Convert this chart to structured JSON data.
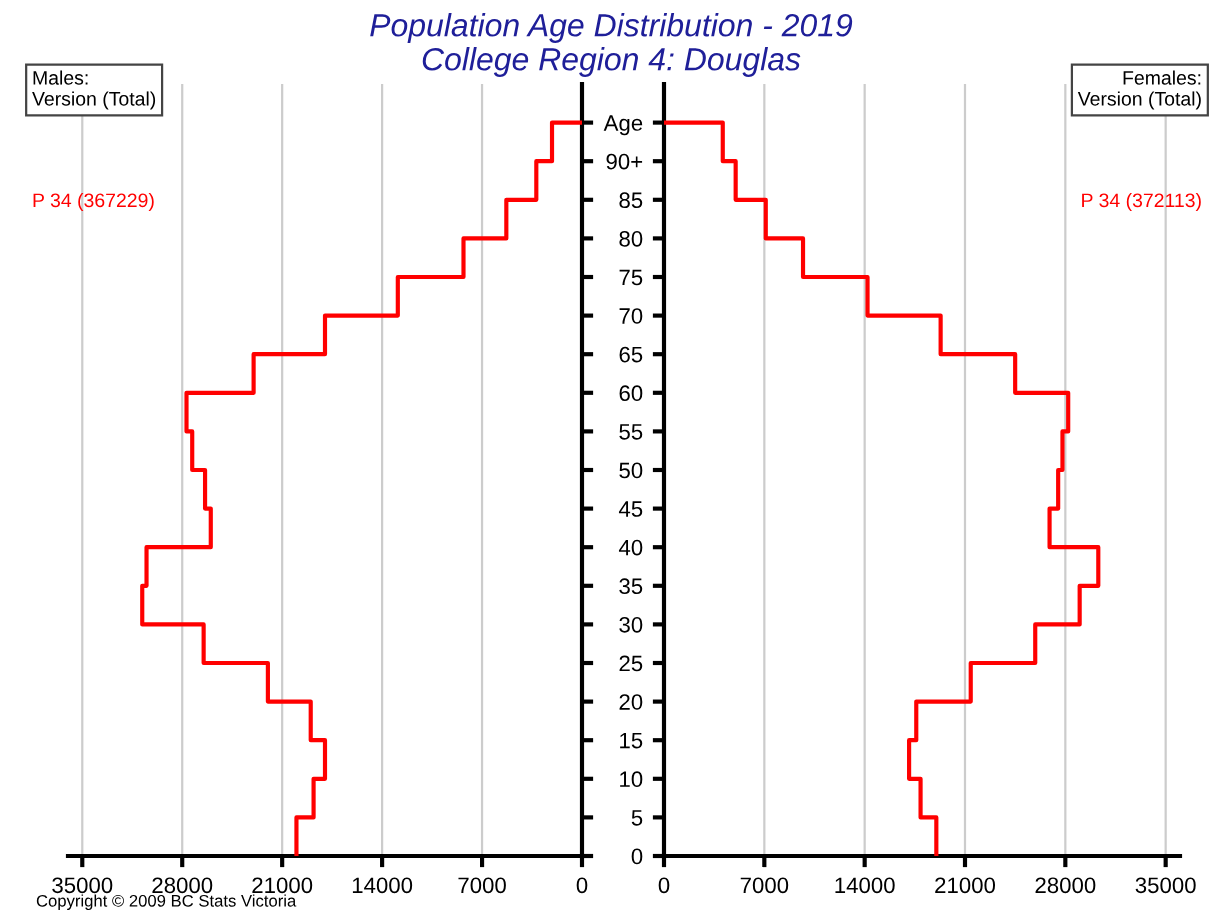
{
  "chart_data": [
    {
      "type": "step",
      "orientation": "horizontal",
      "title": "Population Age Distribution - 2019",
      "subtitle": "College Region 4: Douglas",
      "color": "#ff0000",
      "x": [
        0,
        5,
        10,
        15,
        20,
        25,
        30,
        35,
        40,
        45,
        50,
        55,
        60,
        65,
        70,
        75,
        80,
        85,
        90,
        95
      ],
      "values": [
        20000,
        18800,
        18000,
        19000,
        22000,
        26500,
        30800,
        30500,
        26000,
        26400,
        27300,
        27700,
        23000,
        18000,
        12900,
        8300,
        5300,
        3200,
        2100,
        0
      ],
      "xlim": [
        36000,
        0
      ],
      "xticks": [
        35000,
        28000,
        21000,
        14000,
        7000,
        0
      ],
      "ylim": [
        0,
        100
      ],
      "yticks": [
        {
          "value": 0,
          "label": null
        },
        {
          "value": 5,
          "label": null
        },
        {
          "value": 10,
          "label": null
        },
        {
          "value": 15,
          "label": null
        },
        {
          "value": 20,
          "label": null
        },
        {
          "value": 25,
          "label": null
        },
        {
          "value": 30,
          "label": null
        },
        {
          "value": 35,
          "label": null
        },
        {
          "value": 40,
          "label": null
        },
        {
          "value": 45,
          "label": null
        },
        {
          "value": 50,
          "label": null
        },
        {
          "value": 55,
          "label": null
        },
        {
          "value": 60,
          "label": null
        },
        {
          "value": 65,
          "label": null
        },
        {
          "value": 70,
          "label": null
        },
        {
          "value": 75,
          "label": null
        },
        {
          "value": 80,
          "label": null
        },
        {
          "value": 85,
          "label": null
        },
        {
          "value": 90,
          "label": null
        },
        {
          "value": 95,
          "label": null
        }
      ],
      "grid": "x",
      "tick_labels": "x",
      "annotations": [
        "Males:\nVersion (Total)",
        "P 34 (367229)",
        "Copyright © 2009 BC Stats Victoria"
      ]
    },
    {
      "type": "step",
      "orientation": "horizontal",
      "color": "#ff0000",
      "x": [
        0,
        5,
        10,
        15,
        20,
        25,
        30,
        35,
        40,
        45,
        50,
        55,
        60,
        65,
        70,
        75,
        80,
        85,
        90,
        95
      ],
      "values": [
        19000,
        17900,
        17100,
        17600,
        21400,
        25900,
        29000,
        30300,
        26900,
        27500,
        27800,
        28200,
        24500,
        19300,
        14200,
        9700,
        7100,
        5000,
        4100,
        0
      ],
      "xlim": [
        0,
        36000
      ],
      "xticks": [
        0,
        7000,
        14000,
        21000,
        28000,
        35000
      ],
      "ylim": [
        0,
        100
      ],
      "yticks": [
        0,
        5,
        10,
        15,
        20,
        25,
        30,
        35,
        40,
        45,
        50,
        55,
        60,
        65,
        70,
        75,
        80,
        85,
        {
          "value": 90,
          "label": "90+"
        },
        {
          "value": 95,
          "label": "Age"
        }
      ],
      "grid": "x",
      "annotations": [
        "Females:\nVersion (Total)",
        "P 34 (372113)"
      ]
    }
  ]
}
